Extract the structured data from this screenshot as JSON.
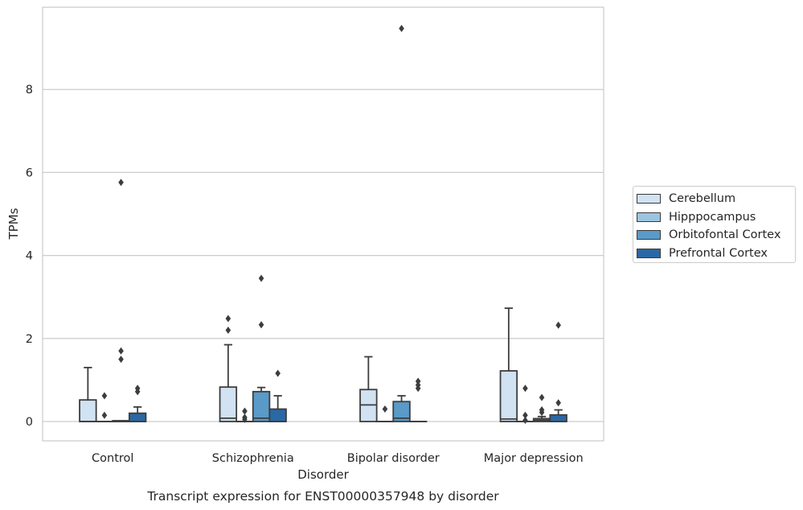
{
  "chart_data": {
    "type": "box",
    "title": "Transcript expression for ENST00000357948 by disorder",
    "xlabel": "Disorder",
    "ylabel": "TPMs",
    "ylim": [
      -0.45,
      9.95
    ],
    "yticks": [
      0,
      2,
      4,
      6,
      8
    ],
    "grid": true,
    "legend_position": "right, outside plot",
    "categories": [
      "Control",
      "Schizophrenia",
      "Bipolar disorder",
      "Major depression"
    ],
    "series": [
      {
        "name": "Cerebellum",
        "color": "#d1e2f2",
        "boxes": [
          {
            "q1": 0.0,
            "median": 0.0,
            "q3": 0.52,
            "whisker_low": 0.0,
            "whisker_high": 1.3,
            "outliers": []
          },
          {
            "q1": 0.0,
            "median": 0.08,
            "q3": 0.83,
            "whisker_low": 0.0,
            "whisker_high": 1.85,
            "outliers": [
              2.2,
              2.48
            ]
          },
          {
            "q1": 0.0,
            "median": 0.4,
            "q3": 0.77,
            "whisker_low": 0.0,
            "whisker_high": 1.56,
            "outliers": []
          },
          {
            "q1": 0.0,
            "median": 0.06,
            "q3": 1.22,
            "whisker_low": 0.0,
            "whisker_high": 2.73,
            "outliers": []
          }
        ]
      },
      {
        "name": "Hipppocampus",
        "color": "#9cc4e0",
        "boxes": [
          {
            "q1": 0.0,
            "median": 0.0,
            "q3": 0.0,
            "whisker_low": 0.0,
            "whisker_high": 0.0,
            "outliers": [
              0.15,
              0.62
            ]
          },
          {
            "q1": 0.0,
            "median": 0.0,
            "q3": 0.0,
            "whisker_low": 0.0,
            "whisker_high": 0.0,
            "outliers": [
              0.05,
              0.1,
              0.25
            ]
          },
          {
            "q1": 0.0,
            "median": 0.0,
            "q3": 0.0,
            "whisker_low": 0.0,
            "whisker_high": 0.0,
            "outliers": [
              0.3
            ]
          },
          {
            "q1": 0.0,
            "median": 0.0,
            "q3": 0.0,
            "whisker_low": 0.0,
            "whisker_high": 0.0,
            "outliers": [
              0.03,
              0.15,
              0.8
            ]
          }
        ]
      },
      {
        "name": "Orbitofontal Cortex",
        "color": "#5a9ac8",
        "boxes": [
          {
            "q1": 0.0,
            "median": 0.0,
            "q3": 0.02,
            "whisker_low": 0.0,
            "whisker_high": 0.02,
            "outliers": [
              1.5,
              1.7,
              5.76
            ]
          },
          {
            "q1": 0.0,
            "median": 0.08,
            "q3": 0.72,
            "whisker_low": 0.0,
            "whisker_high": 0.82,
            "outliers": [
              2.33,
              3.45
            ]
          },
          {
            "q1": 0.0,
            "median": 0.08,
            "q3": 0.48,
            "whisker_low": 0.0,
            "whisker_high": 0.62,
            "outliers": [
              9.47
            ]
          },
          {
            "q1": 0.0,
            "median": 0.03,
            "q3": 0.07,
            "whisker_low": 0.0,
            "whisker_high": 0.12,
            "outliers": [
              0.22,
              0.28,
              0.58
            ]
          }
        ]
      },
      {
        "name": "Prefrontal Cortex",
        "color": "#2a68a6",
        "boxes": [
          {
            "q1": 0.0,
            "median": 0.0,
            "q3": 0.2,
            "whisker_low": 0.0,
            "whisker_high": 0.35,
            "outliers": [
              0.72,
              0.8
            ]
          },
          {
            "q1": 0.0,
            "median": 0.0,
            "q3": 0.3,
            "whisker_low": 0.0,
            "whisker_high": 0.62,
            "outliers": [
              1.16
            ]
          },
          {
            "q1": 0.0,
            "median": 0.0,
            "q3": 0.0,
            "whisker_low": 0.0,
            "whisker_high": 0.0,
            "outliers": [
              0.8,
              0.88,
              0.97
            ]
          },
          {
            "q1": 0.0,
            "median": 0.0,
            "q3": 0.16,
            "whisker_low": 0.0,
            "whisker_high": 0.28,
            "outliers": [
              0.45,
              2.32
            ]
          }
        ]
      }
    ]
  }
}
